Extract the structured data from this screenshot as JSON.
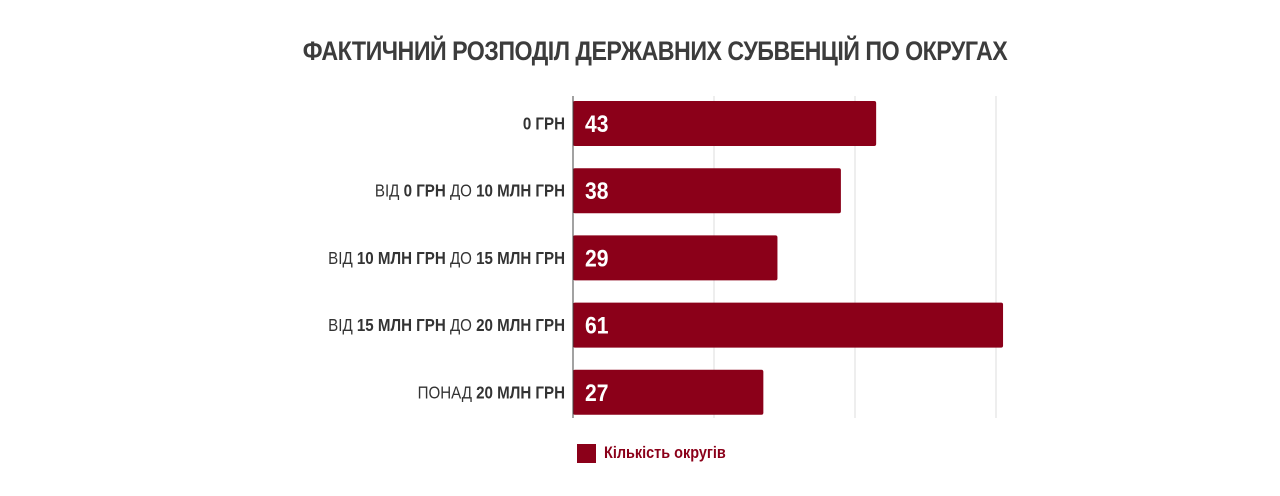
{
  "chart_data": {
    "type": "bar",
    "orientation": "horizontal",
    "title": "ФАКТИЧНИЙ РОЗПОДІЛ ДЕРЖАВНИХ СУБВЕНЦІЙ ПО ОКРУГАХ",
    "categories": [
      [
        {
          "text": "0 ГРН",
          "bold": true
        }
      ],
      [
        {
          "text": "ВІД ",
          "bold": false
        },
        {
          "text": "0 ГРН",
          "bold": true
        },
        {
          "text": " ДО ",
          "bold": false
        },
        {
          "text": "10 МЛН ГРН",
          "bold": true
        }
      ],
      [
        {
          "text": "ВІД ",
          "bold": false
        },
        {
          "text": "10 МЛН ГРН",
          "bold": true
        },
        {
          "text": " ДО ",
          "bold": false
        },
        {
          "text": "15 МЛН ГРН",
          "bold": true
        }
      ],
      [
        {
          "text": "ВІД ",
          "bold": false
        },
        {
          "text": "15 МЛН ГРН",
          "bold": true
        },
        {
          "text": " ДО ",
          "bold": false
        },
        {
          "text": "20 МЛН ГРН",
          "bold": true
        }
      ],
      [
        {
          "text": "ПОНАД ",
          "bold": false
        },
        {
          "text": "20 МЛН ГРН",
          "bold": true
        }
      ]
    ],
    "series": [
      {
        "name": "Кількість округів",
        "values": [
          43,
          38,
          29,
          61,
          27
        ],
        "color": "#8b0019"
      }
    ],
    "xlim": [
      0,
      80
    ],
    "grid": true,
    "gridline_values": [
      20,
      40,
      60
    ],
    "legend_position": "bottom"
  }
}
